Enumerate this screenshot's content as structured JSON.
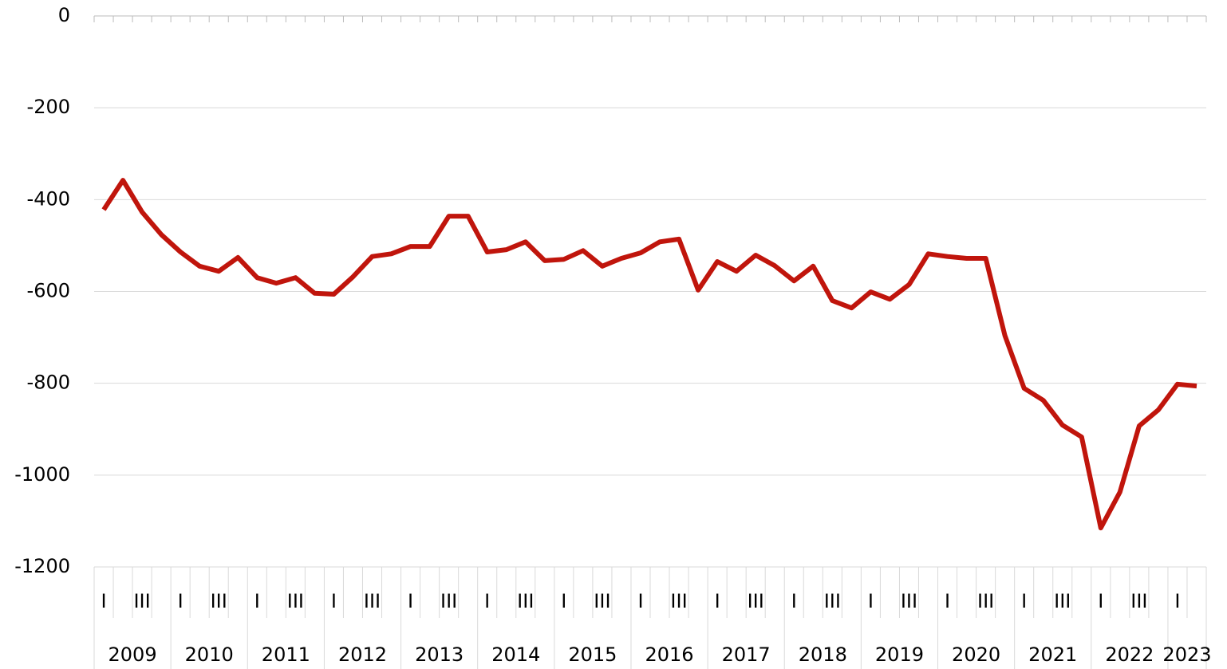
{
  "chart_data": {
    "type": "line",
    "categories": [
      "I",
      null,
      "III",
      null,
      "I",
      null,
      "III",
      null,
      "I",
      null,
      "III",
      null,
      "I",
      null,
      "III",
      null,
      "I",
      null,
      "III",
      null,
      "I",
      null,
      "III",
      null,
      "I",
      null,
      "III",
      null,
      "I",
      null,
      "III",
      null,
      "I",
      null,
      "III",
      null,
      "I",
      null,
      "III",
      null,
      "I",
      null,
      "III",
      null,
      "I",
      null,
      "III",
      null,
      "I",
      null,
      "III",
      null,
      "I",
      null,
      "III",
      null,
      "I",
      null
    ],
    "years": [
      "2009",
      "2010",
      "2011",
      "2012",
      "2013",
      "2014",
      "2015",
      "2016",
      "2017",
      "2018",
      "2019",
      "2020",
      "2021",
      "2022",
      "2023"
    ],
    "series": [
      {
        "color": "#c0150c",
        "values": [
          -422,
          -358,
          -427,
          -476,
          -514,
          -545,
          -556,
          -526,
          -570,
          -582,
          -570,
          -604,
          -606,
          -568,
          -524,
          -518,
          -502,
          -502,
          -436,
          -436,
          -514,
          -509,
          -492,
          -533,
          -530,
          -511,
          -545,
          -528,
          -516,
          -492,
          -486,
          -597,
          -535,
          -556,
          -521,
          -544,
          -577,
          -545,
          -620,
          -636,
          -601,
          -617,
          -585,
          -518,
          -524,
          -528,
          -528,
          -696,
          -811,
          -837,
          -891,
          -917,
          -1115,
          -1037,
          -893,
          -858,
          -802,
          -806
        ]
      }
    ],
    "ylim": [
      -1200,
      0
    ],
    "yticks": [
      -1200,
      -1000,
      -800,
      -600,
      -400,
      -200,
      0
    ],
    "grid": true
  }
}
